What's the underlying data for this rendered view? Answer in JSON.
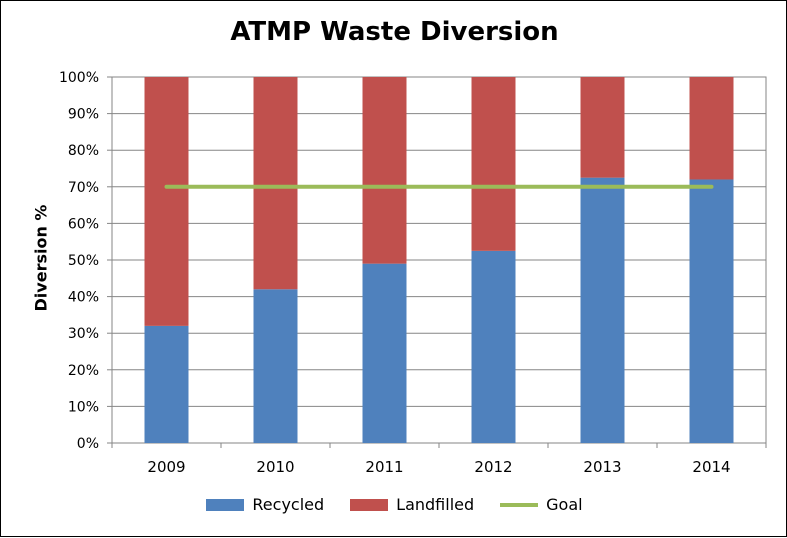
{
  "chart_data": {
    "type": "bar",
    "stacked": true,
    "title": "ATMP Waste Diversion",
    "xlabel": "",
    "ylabel": "Diversion %",
    "categories": [
      "2009",
      "2010",
      "2011",
      "2012",
      "2013",
      "2014"
    ],
    "series": [
      {
        "name": "Recycled",
        "type": "bar",
        "color": "#4F81BD",
        "values": [
          32,
          42,
          49,
          52.5,
          72.5,
          72
        ]
      },
      {
        "name": "Landfilled",
        "type": "bar",
        "color": "#C0504D",
        "values": [
          68,
          58,
          51,
          47.5,
          27.5,
          28
        ]
      },
      {
        "name": "Goal",
        "type": "line",
        "color": "#9BBB59",
        "values": [
          70,
          70,
          70,
          70,
          70,
          70
        ]
      }
    ],
    "ylim": [
      0,
      100
    ],
    "yticks": [
      "0%",
      "10%",
      "20%",
      "30%",
      "40%",
      "50%",
      "60%",
      "70%",
      "80%",
      "90%",
      "100%"
    ],
    "grid": true,
    "legend_position": "bottom"
  }
}
